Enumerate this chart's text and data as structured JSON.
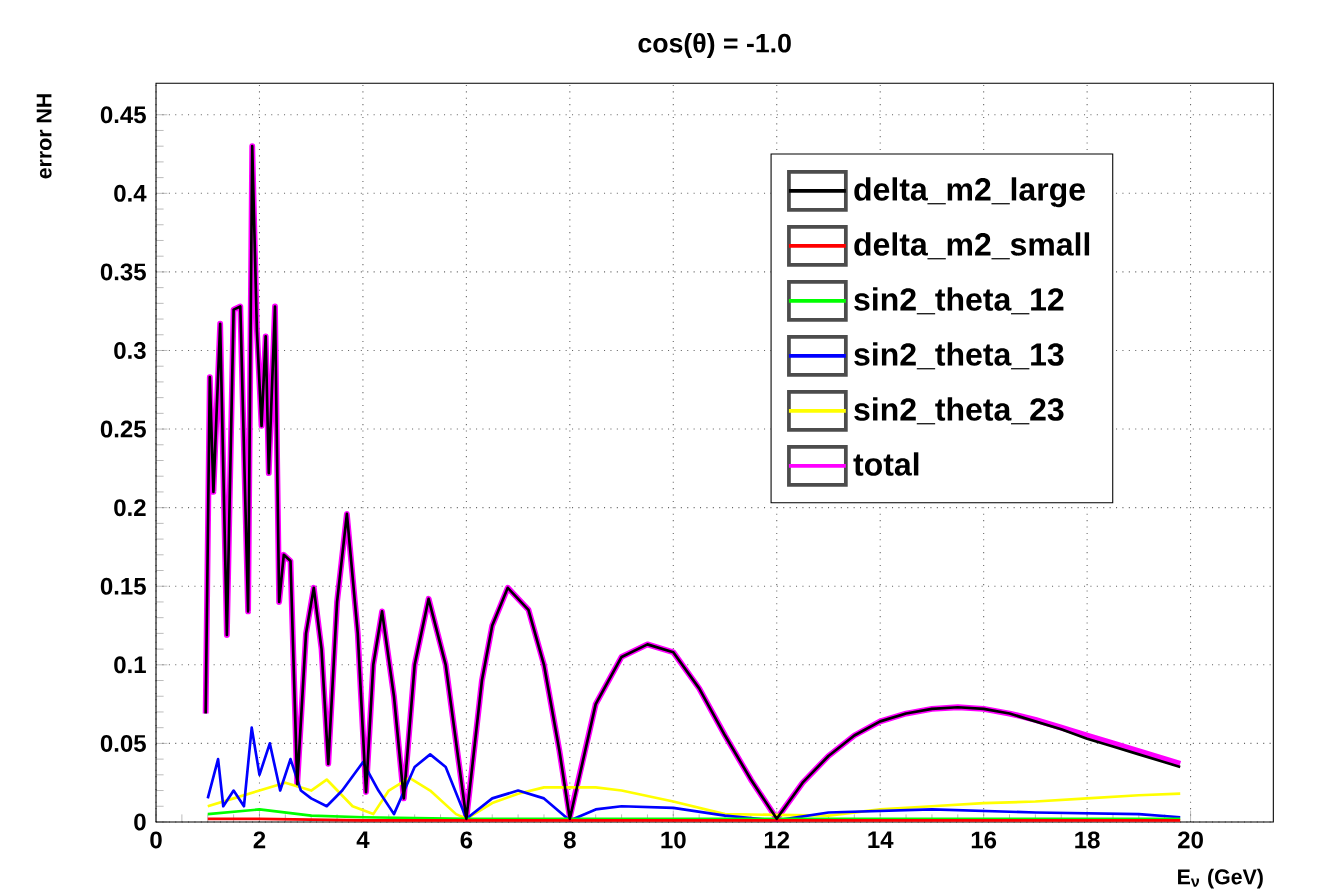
{
  "chart_data": {
    "type": "line",
    "title": "cos(θ) = -1.0",
    "xlabel": "E$_{ν}$ (GeV)",
    "ylabel": "error NH",
    "xlim": [
      0,
      21.6
    ],
    "ylim": [
      0,
      0.47
    ],
    "xticks": [
      0,
      2,
      4,
      6,
      8,
      10,
      12,
      14,
      16,
      18,
      20
    ],
    "yticks": [
      0,
      0.05,
      0.1,
      0.15,
      0.2,
      0.25,
      0.3,
      0.35,
      0.4,
      0.45
    ],
    "grid": true,
    "legend": "top right",
    "series": [
      {
        "name": "delta_m2_large",
        "color": "#000000",
        "x": [
          0.96,
          1.04,
          1.11,
          1.24,
          1.37,
          1.5,
          1.63,
          1.78,
          1.86,
          1.95,
          2.04,
          2.12,
          2.18,
          2.3,
          2.38,
          2.47,
          2.6,
          2.73,
          2.9,
          3.05,
          3.2,
          3.33,
          3.5,
          3.69,
          3.9,
          4.06,
          4.2,
          4.37,
          4.6,
          4.79,
          5.0,
          5.27,
          5.6,
          6.0,
          6.3,
          6.5,
          6.8,
          7.2,
          7.5,
          7.8,
          8.0,
          8.5,
          9.0,
          9.5,
          10.0,
          10.5,
          11.0,
          11.5,
          12.0,
          12.5,
          13.0,
          13.5,
          14.0,
          14.5,
          15.0,
          15.5,
          16.0,
          16.5,
          17.0,
          17.5,
          18.0,
          18.5,
          19.0,
          19.5,
          19.8
        ],
        "values": [
          0.069,
          0.283,
          0.21,
          0.317,
          0.119,
          0.326,
          0.328,
          0.134,
          0.43,
          0.313,
          0.252,
          0.309,
          0.222,
          0.328,
          0.14,
          0.17,
          0.166,
          0.024,
          0.12,
          0.149,
          0.11,
          0.037,
          0.14,
          0.196,
          0.12,
          0.019,
          0.1,
          0.134,
          0.08,
          0.015,
          0.1,
          0.142,
          0.1,
          0.002,
          0.09,
          0.125,
          0.149,
          0.135,
          0.1,
          0.045,
          0.002,
          0.075,
          0.105,
          0.113,
          0.108,
          0.085,
          0.055,
          0.027,
          0.002,
          0.025,
          0.042,
          0.055,
          0.064,
          0.069,
          0.072,
          0.073,
          0.072,
          0.069,
          0.064,
          0.059,
          0.053,
          0.048,
          0.043,
          0.038,
          0.035
        ]
      },
      {
        "name": "delta_m2_small",
        "color": "#ff0000",
        "x": [
          1.0,
          2.0,
          4.0,
          6.0,
          8.0,
          12.0,
          16.0,
          19.8
        ],
        "values": [
          0.002,
          0.002,
          0.001,
          0.001,
          0.001,
          0.001,
          0.001,
          0.001
        ]
      },
      {
        "name": "sin2_theta_12",
        "color": "#00ff00",
        "x": [
          1.0,
          2.0,
          3.0,
          4.0,
          6.0,
          8.0,
          12.0,
          16.0,
          19.8
        ],
        "values": [
          0.005,
          0.008,
          0.004,
          0.003,
          0.002,
          0.002,
          null,
          0.002,
          0.002
        ]
      },
      {
        "name": "sin2_theta_13",
        "color": "#0000ff",
        "x": [
          1.0,
          1.2,
          1.3,
          1.5,
          1.7,
          1.85,
          2.0,
          2.2,
          2.4,
          2.6,
          2.8,
          3.0,
          3.3,
          3.6,
          4.0,
          4.3,
          4.6,
          5.0,
          5.3,
          5.6,
          6.0,
          6.5,
          7.0,
          7.5,
          8.0,
          8.5,
          9.0,
          10.0,
          11.0,
          12.0,
          13.0,
          15.0,
          17.0,
          19.0,
          19.8
        ],
        "values": [
          0.015,
          0.04,
          0.01,
          0.02,
          0.01,
          0.06,
          0.03,
          0.05,
          0.02,
          0.04,
          0.02,
          0.015,
          0.01,
          0.02,
          0.038,
          0.02,
          0.005,
          0.035,
          0.043,
          0.035,
          0.002,
          0.015,
          0.02,
          0.015,
          0.001,
          0.008,
          0.01,
          0.009,
          0.004,
          0.001,
          0.006,
          0.008,
          0.006,
          0.005,
          0.003
        ]
      },
      {
        "name": "sin2_theta_23",
        "color": "#ffff00",
        "x": [
          1.0,
          1.5,
          2.0,
          2.5,
          3.0,
          3.3,
          3.8,
          4.2,
          4.5,
          4.9,
          5.3,
          5.8,
          6.0,
          6.5,
          7.0,
          7.5,
          8.0,
          8.5,
          9.0,
          10.0,
          11.0,
          12.0,
          13.0,
          14.0,
          15.0,
          16.0,
          17.0,
          18.0,
          19.0,
          19.8
        ],
        "values": [
          0.01,
          0.015,
          0.02,
          0.025,
          0.02,
          0.027,
          0.01,
          0.005,
          0.02,
          0.028,
          0.02,
          0.005,
          0.002,
          0.012,
          0.018,
          0.022,
          0.022,
          0.022,
          0.02,
          0.013,
          0.005,
          null,
          0.004,
          0.008,
          0.01,
          0.012,
          0.013,
          0.015,
          0.017,
          0.018
        ]
      },
      {
        "name": "total",
        "color": "#ff00ff",
        "x": [
          0.96,
          1.04,
          1.11,
          1.24,
          1.37,
          1.5,
          1.63,
          1.78,
          1.86,
          1.95,
          2.04,
          2.12,
          2.18,
          2.3,
          2.38,
          2.47,
          2.6,
          2.73,
          2.9,
          3.05,
          3.2,
          3.33,
          3.5,
          3.69,
          3.9,
          4.06,
          4.2,
          4.37,
          4.6,
          4.79,
          5.0,
          5.27,
          5.6,
          6.0,
          6.3,
          6.5,
          6.8,
          7.2,
          7.5,
          7.8,
          8.0,
          8.5,
          9.0,
          9.5,
          10.0,
          10.5,
          11.0,
          11.5,
          12.0,
          12.5,
          13.0,
          13.5,
          14.0,
          14.5,
          15.0,
          15.5,
          16.0,
          16.5,
          17.0,
          17.5,
          18.0,
          18.5,
          19.0,
          19.5,
          19.8
        ],
        "values": [
          0.069,
          0.283,
          0.21,
          0.317,
          0.119,
          0.326,
          0.328,
          0.134,
          0.43,
          0.313,
          0.252,
          0.309,
          0.222,
          0.328,
          0.14,
          0.17,
          0.166,
          0.024,
          0.12,
          0.149,
          0.11,
          0.037,
          0.14,
          0.196,
          0.12,
          0.019,
          0.1,
          0.134,
          0.08,
          0.015,
          0.1,
          0.142,
          0.1,
          0.002,
          0.09,
          0.125,
          0.149,
          0.135,
          0.1,
          0.045,
          0.003,
          0.075,
          0.105,
          0.113,
          0.108,
          0.085,
          0.055,
          0.027,
          0.002,
          0.025,
          0.042,
          0.055,
          0.064,
          0.069,
          0.072,
          0.073,
          0.072,
          0.069,
          0.065,
          0.06,
          0.055,
          0.05,
          0.045,
          0.04,
          0.037
        ]
      }
    ]
  }
}
